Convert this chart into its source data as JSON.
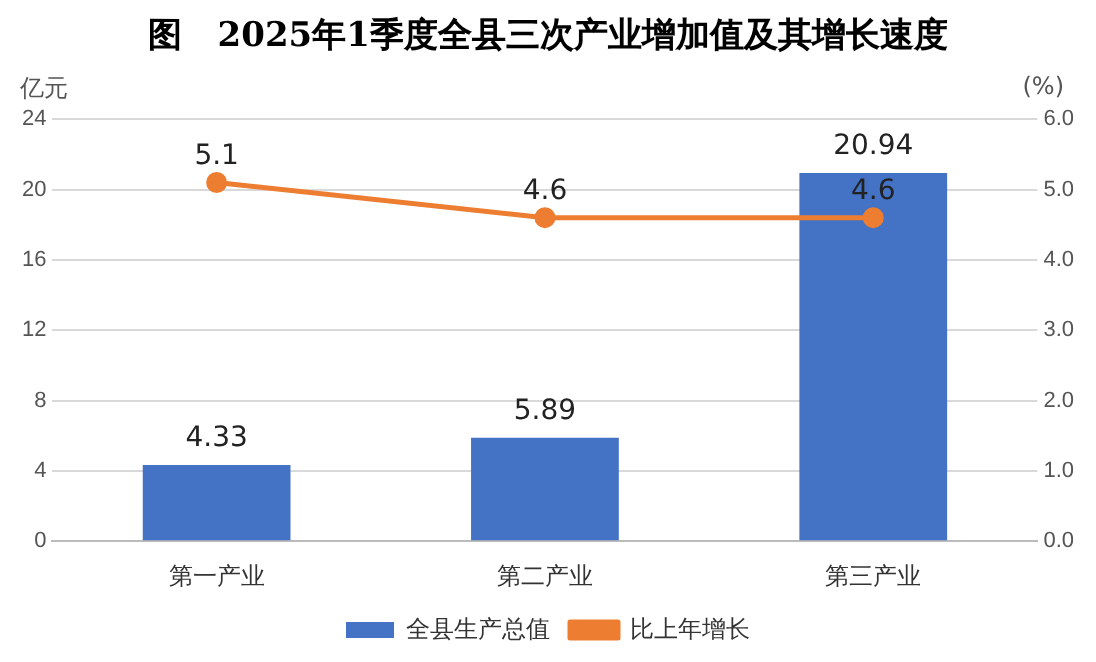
{
  "chart_data": {
    "type": "bar",
    "title": "图   2025年1季度全县三次产业增加值及其增长速度",
    "ylabel": "亿元",
    "y2label": "(%)",
    "categories": [
      "第一产业",
      "第二产业",
      "第三产业"
    ],
    "series": [
      {
        "name": "全县生产总值",
        "color": "#4472c4",
        "values": [
          4.33,
          5.89,
          20.94
        ]
      },
      {
        "name": "比上年增长",
        "type": "line",
        "axis": "y2",
        "color": "#ed7d31",
        "values": [
          5.1,
          4.6,
          4.6
        ]
      }
    ],
    "ylim": [
      0,
      24
    ],
    "yticks": [
      0,
      4,
      8,
      12,
      16,
      20,
      24
    ],
    "y2lim": [
      0,
      6
    ],
    "y2ticks": [
      {
        "value": 0,
        "label": "0.0"
      },
      {
        "value": 1,
        "label": "1.0"
      },
      {
        "value": 2,
        "label": "2.0"
      },
      {
        "value": 3,
        "label": "3.0"
      },
      {
        "value": 4,
        "label": "4.0"
      },
      {
        "value": 5,
        "label": "5.0"
      },
      {
        "value": 6,
        "label": "6.0"
      }
    ],
    "grid": "y",
    "legend": "bottom",
    "marker": "circle",
    "line_style": "solid",
    "data_labels": true
  }
}
